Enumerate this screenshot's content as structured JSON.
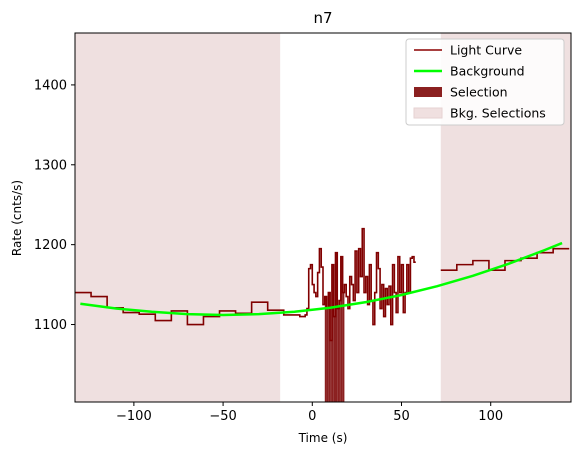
{
  "chart_data": {
    "type": "line",
    "title": "n7",
    "xlabel": "Time (s)",
    "ylabel": "Rate (cnts/s)",
    "xlim": [
      -133,
      145
    ],
    "ylim": [
      1003,
      1465
    ],
    "x_ticks": [
      -100,
      -50,
      0,
      50,
      100
    ],
    "x_tick_labels": [
      "−100",
      "−50",
      "0",
      "50",
      "100"
    ],
    "y_ticks": [
      1100,
      1200,
      1300,
      1400
    ],
    "y_tick_labels": [
      "1100",
      "1200",
      "1300",
      "1400"
    ],
    "legend_position": "upper right",
    "legend": [
      {
        "label": "Light Curve",
        "kind": "line",
        "color": "#8b0000"
      },
      {
        "label": "Background",
        "kind": "line",
        "color": "#00ff00"
      },
      {
        "label": "Selection",
        "kind": "patch",
        "color": "#8b2020"
      },
      {
        "label": "Bkg. Selections",
        "kind": "patch",
        "color": "#f0e0e0"
      }
    ],
    "colors": {
      "light_curve": "#800000",
      "background": "#00ff00",
      "selection": "#8b2020",
      "bkg_selection": "#efe0e0"
    },
    "bkg_selections": [
      [
        -133,
        -18
      ],
      [
        72,
        145
      ]
    ],
    "selection": [
      7,
      18
    ],
    "light_curve_bins": [
      [
        -133,
        -124,
        1140
      ],
      [
        -124,
        -115,
        1135
      ],
      [
        -115,
        -106,
        1121
      ],
      [
        -106,
        -97,
        1115
      ],
      [
        -97,
        -88,
        1113
      ],
      [
        -88,
        -79,
        1105
      ],
      [
        -79,
        -70,
        1117
      ],
      [
        -70,
        -61,
        1100
      ],
      [
        -61,
        -52,
        1110
      ],
      [
        -52,
        -43,
        1117
      ],
      [
        -43,
        -34,
        1114
      ],
      [
        -34,
        -25,
        1128
      ],
      [
        -25,
        -16,
        1118
      ],
      [
        -16,
        -7,
        1112
      ],
      [
        -7,
        -4,
        1110
      ],
      [
        -4,
        -3,
        1112
      ],
      [
        -3,
        -2,
        1120
      ],
      [
        -2,
        -1,
        1170
      ],
      [
        -1,
        0,
        1175
      ],
      [
        0,
        1,
        1150
      ],
      [
        1,
        2,
        1140
      ],
      [
        2,
        3,
        1135
      ],
      [
        3,
        4,
        1165
      ],
      [
        4,
        5,
        1195
      ],
      [
        5,
        6,
        1172
      ],
      [
        6,
        7,
        1125
      ],
      [
        7,
        8,
        1135
      ],
      [
        8,
        9,
        1120
      ],
      [
        9,
        10,
        1140
      ],
      [
        10,
        11,
        1080
      ],
      [
        11,
        12,
        1175
      ],
      [
        12,
        13,
        1110
      ],
      [
        13,
        14,
        1190
      ],
      [
        14,
        15,
        1120
      ],
      [
        15,
        16,
        1130
      ],
      [
        16,
        17,
        1185
      ],
      [
        17,
        18,
        1140
      ],
      [
        18,
        19,
        1150
      ],
      [
        19,
        20,
        1135
      ],
      [
        20,
        21,
        1120
      ],
      [
        21,
        22,
        1160
      ],
      [
        22,
        23,
        1150
      ],
      [
        23,
        24,
        1130
      ],
      [
        24,
        25,
        1192
      ],
      [
        25,
        26,
        1140
      ],
      [
        26,
        27,
        1195
      ],
      [
        27,
        28,
        1160
      ],
      [
        28,
        29,
        1220
      ],
      [
        29,
        30,
        1140
      ],
      [
        30,
        31,
        1160
      ],
      [
        31,
        32,
        1125
      ],
      [
        32,
        33,
        1175
      ],
      [
        33,
        34,
        1130
      ],
      [
        34,
        35,
        1100
      ],
      [
        35,
        36,
        1140
      ],
      [
        36,
        37,
        1190
      ],
      [
        37,
        38,
        1170
      ],
      [
        38,
        39,
        1120
      ],
      [
        39,
        40,
        1150
      ],
      [
        40,
        41,
        1110
      ],
      [
        41,
        42,
        1145
      ],
      [
        42,
        43,
        1125
      ],
      [
        43,
        44,
        1148
      ],
      [
        44,
        45,
        1100
      ],
      [
        45,
        46,
        1175
      ],
      [
        46,
        47,
        1140
      ],
      [
        47,
        48,
        1115
      ],
      [
        48,
        49,
        1185
      ],
      [
        49,
        50,
        1140
      ],
      [
        50,
        51,
        1175
      ],
      [
        51,
        52,
        1115
      ],
      [
        52,
        53,
        1140
      ],
      [
        53,
        54,
        1175
      ],
      [
        54,
        55,
        1140
      ],
      [
        55,
        56,
        1183
      ],
      [
        56,
        57,
        1185
      ],
      [
        57,
        58,
        1178
      ],
      [
        72,
        81,
        1168
      ],
      [
        81,
        90,
        1175
      ],
      [
        90,
        99,
        1180
      ],
      [
        99,
        108,
        1168
      ],
      [
        108,
        117,
        1180
      ],
      [
        117,
        126,
        1183
      ],
      [
        126,
        135,
        1190
      ],
      [
        135,
        144,
        1195
      ]
    ],
    "background_curve": {
      "x": [
        -130,
        -110,
        -90,
        -70,
        -50,
        -30,
        -10,
        10,
        30,
        50,
        70,
        90,
        110,
        130,
        140
      ],
      "y": [
        1126,
        1120,
        1116,
        1113,
        1112,
        1113,
        1116,
        1121,
        1128,
        1137,
        1148,
        1161,
        1176,
        1193,
        1202
      ]
    }
  }
}
